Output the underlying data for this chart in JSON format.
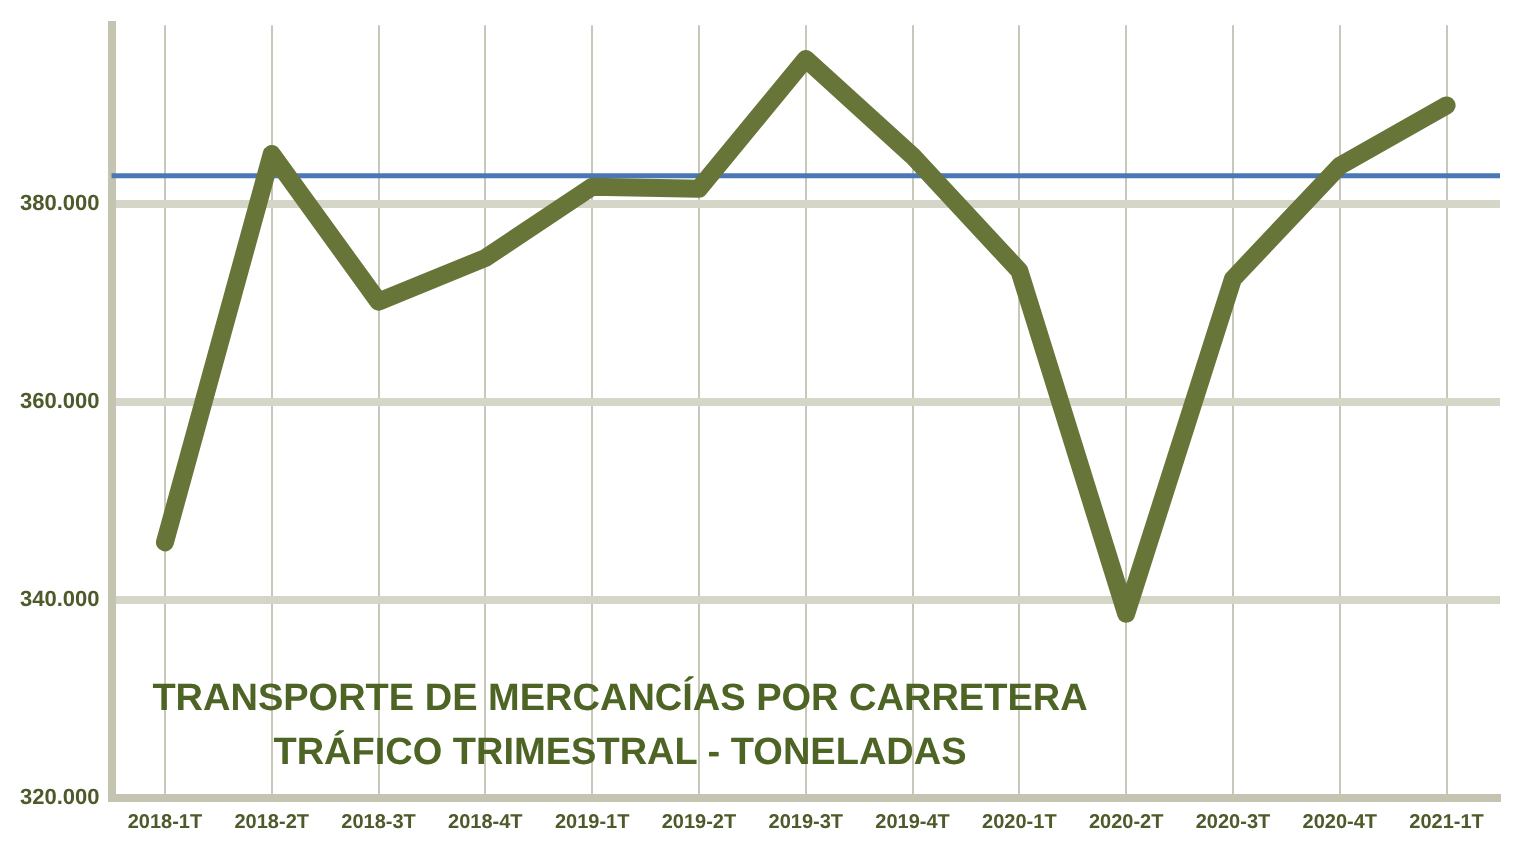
{
  "chart_data": {
    "type": "line",
    "title": "TRANSPORTE DE MERCANCÍAS POR CARRETERA\nTRÁFICO TRIMESTRAL - TONELADAS",
    "categories": [
      "2018-1T",
      "2018-2T",
      "2018-3T",
      "2018-4T",
      "2019-1T",
      "2019-2T",
      "2019-3T",
      "2019-4T",
      "2020-1T",
      "2020-2T",
      "2020-3T",
      "2020-4T",
      "2021-1T"
    ],
    "series": [
      {
        "color": "#687539",
        "values": [
          345800,
          385000,
          370100,
          374500,
          381700,
          381500,
          394600,
          384800,
          373200,
          338600,
          372400,
          383800,
          389900
        ]
      }
    ],
    "ref_lines": [
      {
        "axis": "y",
        "value": 382800,
        "color": "#4a78b5"
      }
    ],
    "ylim": [
      320000,
      398000
    ],
    "yticks": [
      {
        "value": 320000,
        "label": "320.000"
      },
      {
        "value": 340000,
        "label": "340.000"
      },
      {
        "value": 360000,
        "label": "360.000"
      },
      {
        "value": 380000,
        "label": "380.000"
      }
    ],
    "grid": true,
    "legend": false,
    "marker": "none",
    "line_style": "solid"
  }
}
